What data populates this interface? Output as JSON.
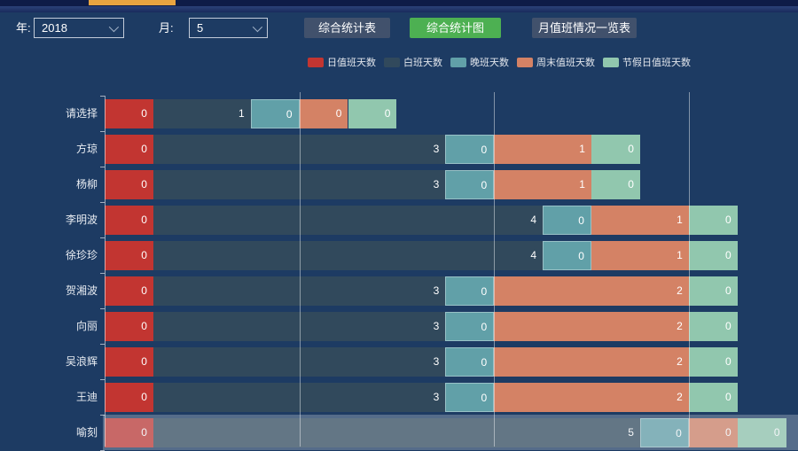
{
  "colors": {
    "background": "#1d3b63",
    "top_strip": "#0e1c47",
    "scroll_indicator": "#e9a440",
    "button_default": "#41516c",
    "button_active": "#4db052",
    "series_red": "#c23531",
    "series_dark": "#31495c",
    "series_teal": "#61a0a8",
    "series_salmon": "#d48265",
    "series_green": "#91c7ae"
  },
  "toolbar": {
    "year_label": "年:",
    "year_value": "2018",
    "month_label": "月:",
    "month_value": "5",
    "buttons": [
      {
        "label": "综合统计表",
        "active": false
      },
      {
        "label": "综合统计图",
        "active": true
      },
      {
        "label": "月值班情况一览表",
        "active": false
      }
    ]
  },
  "chart_data": {
    "type": "bar",
    "orientation": "horizontal",
    "stacked": true,
    "legend_position": "top",
    "grid": true,
    "categories": [
      "请选择",
      "方琼",
      "杨柳",
      "李明波",
      "徐珍珍",
      "贺湘波",
      "向丽",
      "吴浪辉",
      "王迪",
      "喻刻"
    ],
    "series": [
      {
        "name": "日值班天数",
        "color": "#c23531",
        "values": [
          0,
          0,
          0,
          0,
          0,
          0,
          0,
          0,
          0,
          0
        ],
        "visual_units": [
          1,
          1,
          1,
          1,
          1,
          1,
          1,
          1,
          1,
          1
        ]
      },
      {
        "name": "白班天数",
        "color": "#31495c",
        "values": [
          1,
          3,
          3,
          4,
          4,
          3,
          3,
          3,
          3,
          5
        ],
        "visual_units": [
          2,
          6,
          6,
          8,
          8,
          6,
          6,
          6,
          6,
          10
        ]
      },
      {
        "name": "晚班天数",
        "color": "#61a0a8",
        "values": [
          0,
          0,
          0,
          0,
          0,
          0,
          0,
          0,
          0,
          0
        ],
        "visual_units": [
          1,
          1,
          1,
          1,
          1,
          1,
          1,
          1,
          1,
          1
        ]
      },
      {
        "name": "周末值班天数",
        "color": "#d48265",
        "values": [
          0,
          1,
          1,
          1,
          1,
          2,
          2,
          2,
          2,
          0
        ],
        "visual_units": [
          1,
          2,
          2,
          2,
          2,
          4,
          4,
          4,
          4,
          1
        ]
      },
      {
        "name": "节假日值班天数",
        "color": "#91c7ae",
        "values": [
          0,
          0,
          0,
          0,
          0,
          0,
          0,
          0,
          0,
          0
        ],
        "visual_units": [
          1,
          1,
          1,
          1,
          1,
          1,
          1,
          1,
          1,
          1
        ]
      }
    ],
    "gridline_units": [
      4,
      8,
      12
    ],
    "highlighted_category": "喻刻"
  }
}
